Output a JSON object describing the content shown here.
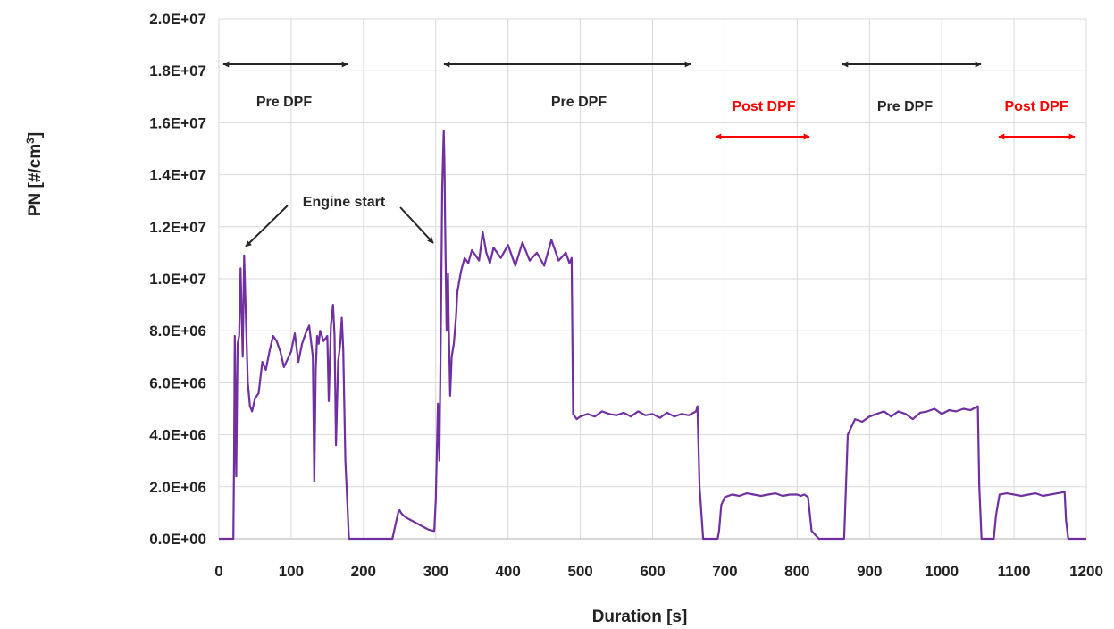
{
  "chart_data": {
    "type": "line",
    "title": "",
    "xlabel": "Duration [s]",
    "ylabel_main": "PN [#/cm",
    "ylabel_sup": "3",
    "ylabel_tail": "]",
    "xlim": [
      0,
      1200
    ],
    "ylim": [
      0,
      20000000
    ],
    "x_ticks": [
      0,
      100,
      200,
      300,
      400,
      500,
      600,
      700,
      800,
      900,
      1000,
      1100,
      1200
    ],
    "x_tick_labels": [
      "0",
      "100",
      "200",
      "300",
      "400",
      "500",
      "600",
      "700",
      "800",
      "900",
      "1000",
      "1100",
      "1200"
    ],
    "y_ticks": [
      0,
      2000000,
      4000000,
      6000000,
      8000000,
      10000000,
      12000000,
      14000000,
      16000000,
      18000000,
      20000000
    ],
    "y_tick_labels": [
      "0.0E+00",
      "2.0E+06",
      "4.0E+06",
      "6.0E+06",
      "8.0E+06",
      "1.0E+07",
      "1.2E+07",
      "1.4E+07",
      "1.6E+07",
      "1.8E+07",
      "2.0E+07"
    ],
    "grid": true,
    "series": [
      {
        "color": "#7030a0",
        "x": [
          0,
          20,
          21,
          22,
          24,
          26,
          28,
          30,
          33,
          35,
          38,
          40,
          43,
          46,
          50,
          55,
          60,
          65,
          70,
          75,
          80,
          85,
          90,
          95,
          100,
          105,
          110,
          115,
          120,
          125,
          130,
          132,
          134,
          136,
          138,
          140,
          145,
          150,
          152,
          155,
          158,
          160,
          162,
          165,
          168,
          170,
          172,
          175,
          180,
          185,
          190,
          200,
          220,
          240,
          248,
          250,
          252,
          255,
          260,
          270,
          280,
          290,
          298,
          300,
          303,
          305,
          307,
          309,
          311,
          312,
          313,
          315,
          317,
          318,
          320,
          322,
          325,
          328,
          330,
          335,
          340,
          345,
          350,
          355,
          360,
          365,
          370,
          375,
          380,
          390,
          400,
          410,
          420,
          430,
          440,
          450,
          460,
          470,
          480,
          485,
          488,
          490,
          495,
          500,
          510,
          520,
          530,
          540,
          550,
          560,
          570,
          580,
          590,
          600,
          610,
          620,
          630,
          640,
          650,
          660,
          662,
          665,
          670,
          675,
          680,
          685,
          690,
          692,
          695,
          700,
          710,
          720,
          730,
          740,
          750,
          760,
          770,
          780,
          790,
          800,
          805,
          810,
          815,
          820,
          830,
          840,
          850,
          860,
          862,
          865,
          870,
          880,
          890,
          900,
          910,
          920,
          930,
          940,
          950,
          960,
          970,
          980,
          990,
          1000,
          1010,
          1020,
          1030,
          1040,
          1050,
          1052,
          1055,
          1060,
          1065,
          1070,
          1072,
          1075,
          1080,
          1090,
          1100,
          1110,
          1120,
          1130,
          1140,
          1150,
          1160,
          1170,
          1172,
          1175,
          1180,
          1190,
          1200
        ],
        "y": [
          0,
          0,
          3000000,
          7800000,
          2400000,
          7500000,
          7800000,
          10400000,
          7000000,
          10900000,
          8000000,
          6000000,
          5100000,
          4900000,
          5400000,
          5600000,
          6800000,
          6500000,
          7200000,
          7800000,
          7600000,
          7200000,
          6600000,
          6900000,
          7200000,
          7900000,
          6800000,
          7500000,
          7900000,
          8200000,
          7000000,
          2200000,
          6500000,
          7800000,
          7500000,
          8000000,
          7600000,
          7800000,
          5300000,
          8200000,
          9000000,
          7800000,
          3600000,
          6800000,
          7500000,
          8500000,
          7300000,
          3000000,
          0,
          0,
          0,
          0,
          0,
          0,
          1000000,
          1100000,
          1000000,
          900000,
          800000,
          650000,
          500000,
          350000,
          300000,
          1500000,
          5200000,
          3000000,
          7800000,
          13500000,
          15700000,
          14500000,
          12000000,
          8000000,
          10200000,
          8200000,
          5500000,
          7000000,
          7500000,
          8500000,
          9500000,
          10300000,
          10800000,
          10600000,
          11100000,
          10900000,
          10700000,
          11800000,
          11000000,
          10600000,
          11200000,
          10800000,
          11300000,
          10500000,
          11400000,
          10700000,
          11000000,
          10500000,
          11500000,
          10700000,
          11000000,
          10600000,
          10800000,
          4800000,
          4600000,
          4700000,
          4800000,
          4700000,
          4900000,
          4800000,
          4750000,
          4850000,
          4700000,
          4900000,
          4750000,
          4800000,
          4650000,
          4850000,
          4700000,
          4800000,
          4750000,
          4900000,
          5100000,
          2000000,
          0,
          0,
          0,
          0,
          0,
          300000,
          1300000,
          1600000,
          1700000,
          1650000,
          1750000,
          1700000,
          1650000,
          1700000,
          1750000,
          1650000,
          1700000,
          1700000,
          1650000,
          1700000,
          1600000,
          300000,
          0,
          0,
          0,
          0,
          0,
          0,
          4000000,
          4600000,
          4500000,
          4700000,
          4800000,
          4900000,
          4700000,
          4900000,
          4800000,
          4600000,
          4850000,
          4900000,
          5000000,
          4800000,
          4950000,
          4900000,
          5000000,
          4950000,
          5100000,
          2000000,
          0,
          0,
          0,
          0,
          0,
          900000,
          1700000,
          1750000,
          1700000,
          1650000,
          1700000,
          1750000,
          1650000,
          1700000,
          1750000,
          1800000,
          700000,
          0,
          0,
          0,
          0
        ]
      }
    ],
    "annotations": {
      "pre_dpf_1": "Pre DPF",
      "pre_dpf_2": "Pre DPF",
      "pre_dpf_3": "Pre DPF",
      "post_dpf_1": "Post DPF",
      "post_dpf_2": "Post DPF",
      "engine_start": "Engine start",
      "black_color": "#262626",
      "red_color": "#ff0000"
    }
  }
}
